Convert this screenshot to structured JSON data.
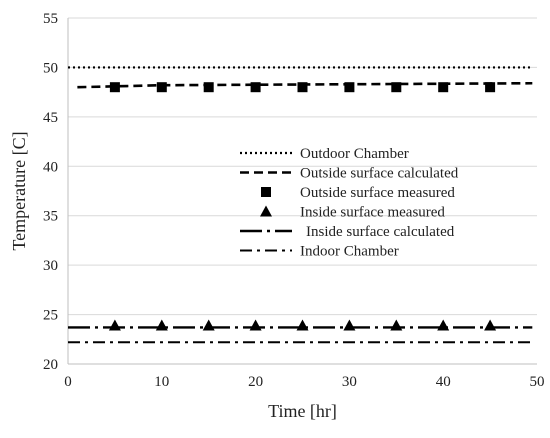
{
  "chart_data": {
    "type": "line",
    "xlabel": "Time [hr]",
    "ylabel": "Temperature [C]",
    "xlim": [
      0,
      50
    ],
    "ylim": [
      20,
      55
    ],
    "x_ticks": [
      0,
      10,
      20,
      30,
      40,
      50
    ],
    "y_ticks": [
      20,
      25,
      30,
      35,
      40,
      45,
      50,
      55
    ],
    "x_tick_labels": [
      "0",
      "10",
      "20",
      "30",
      "40",
      "50"
    ],
    "y_tick_labels": [
      "20",
      "25",
      "30",
      "35",
      "40",
      "45",
      "50",
      "55"
    ],
    "grid": "horizontal",
    "legend_position": "center-right",
    "series": [
      {
        "name": "Outdoor Chamber",
        "style": "dotted",
        "x": [
          0,
          49.5
        ],
        "y": [
          50.0,
          50.0
        ]
      },
      {
        "name": "Outside surface calculated",
        "style": "dashed",
        "x": [
          1,
          10,
          20,
          30,
          40,
          49.5
        ],
        "y": [
          48.0,
          48.2,
          48.25,
          48.3,
          48.35,
          48.4
        ]
      },
      {
        "name": "Outside surface measured",
        "style": "square-markers",
        "x": [
          5,
          10,
          15,
          20,
          25,
          30,
          35,
          40,
          45
        ],
        "y": [
          48,
          48,
          48,
          48,
          48,
          48,
          48,
          48,
          48
        ]
      },
      {
        "name": "Inside surface measured",
        "style": "triangle-markers",
        "x": [
          5,
          10,
          15,
          20,
          25,
          30,
          35,
          40,
          45
        ],
        "y": [
          23.9,
          23.9,
          23.9,
          23.9,
          23.9,
          23.9,
          23.9,
          23.9,
          23.9
        ]
      },
      {
        "name": "Inside surface calculated",
        "style": "long-dash-dot",
        "x": [
          0,
          49.5
        ],
        "y": [
          23.7,
          23.7
        ]
      },
      {
        "name": "Indoor Chamber",
        "style": "dash-dot",
        "x": [
          0,
          49.5
        ],
        "y": [
          22.2,
          22.2
        ]
      }
    ]
  }
}
